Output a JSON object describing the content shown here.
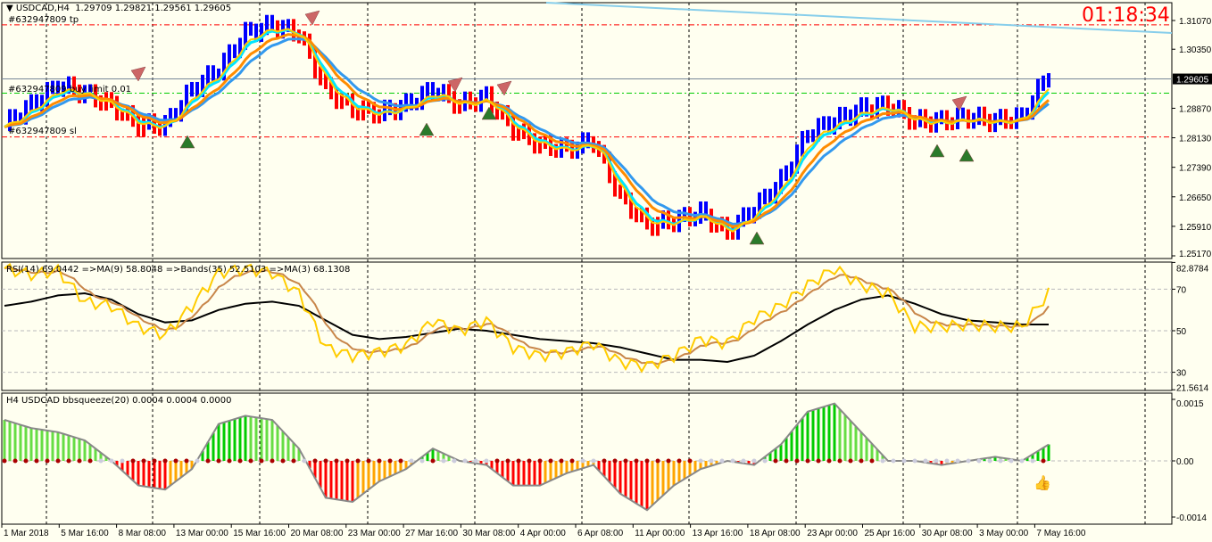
{
  "header": {
    "symbol": "USDCAD,H4",
    "ohlc": "1.29709 1.29821 1.29561 1.29605"
  },
  "clock": "01:18:34",
  "orders": {
    "tp": "#632947809 tp",
    "buy_limit": "#632947809 buy limit 0.01",
    "sl": "#632947809 sl"
  },
  "price_axis": {
    "ticks": [
      "1.31070",
      "1.30350",
      "1.28870",
      "1.28130",
      "1.27390",
      "1.26650",
      "1.25910",
      "1.25170"
    ],
    "current": "1.29605"
  },
  "rsi": {
    "label": "RSI(14) 69.0442  =>MA(9) 58.8048  =>Bands(35) 52.5103  =>MA(3) 68.1308",
    "ticks": [
      "82.8784",
      "70",
      "50",
      "30",
      "21.5614"
    ]
  },
  "squeeze": {
    "label": "H4 USDCAD bbsqueeze(20) 0.0004 0.0004 0.0000",
    "ticks": [
      "0.0015",
      "0.00",
      "-0.0014"
    ]
  },
  "time_axis": [
    "1 Mar 2018",
    "5 Mar 16:00",
    "8 Mar 08:00",
    "13 Mar 00:00",
    "15 Mar 16:00",
    "20 Mar 08:00",
    "23 Mar 00:00",
    "27 Mar 16:00",
    "30 Mar 08:00",
    "4 Apr 00:00",
    "6 Apr 08:00",
    "11 Apr 00:00",
    "13 Apr 16:00",
    "18 Apr 08:00",
    "23 Apr 00:00",
    "25 Apr 16:00",
    "30 Apr 08:00",
    "3 May 00:00",
    "7 May 16:00"
  ],
  "colors": {
    "bull": "#0000ff",
    "bear": "#ff0000",
    "ma_fast": "#00e5ff",
    "ma_slow": "#3399ee",
    "ma_orange": "#ff8c00",
    "ma_yellow": "#ffcc00",
    "tp_sl": "#ff0000",
    "limit": "#00cc00",
    "clock": "#ff0000"
  },
  "chart_data": {
    "type": "line",
    "price_close": [
      1.284,
      1.289,
      1.294,
      1.292,
      1.289,
      1.284,
      1.284,
      1.293,
      1.298,
      1.307,
      1.309,
      1.307,
      1.293,
      1.288,
      1.287,
      1.289,
      1.293,
      1.289,
      1.291,
      1.283,
      1.279,
      1.278,
      1.28,
      1.266,
      1.259,
      1.26,
      1.262,
      1.257,
      1.263,
      1.27,
      1.282,
      1.285,
      1.288,
      1.289,
      1.285,
      1.285,
      1.286,
      1.285,
      1.286,
      1.297
    ],
    "price_levels": {
      "tp": 1.3096,
      "buy_limit": 1.2925,
      "sl": 1.2815,
      "current": 1.29605
    },
    "rsi": [
      80,
      77,
      79,
      64,
      62,
      52,
      48,
      62,
      78,
      80,
      78,
      68,
      42,
      38,
      40,
      43,
      55,
      50,
      55,
      42,
      38,
      40,
      44,
      35,
      33,
      38,
      46,
      44,
      56,
      62,
      72,
      80,
      72,
      68,
      52,
      52,
      53,
      52,
      52,
      68
    ],
    "rsi_bands": [
      62,
      64,
      67,
      68,
      65,
      58,
      54,
      55,
      60,
      63,
      64,
      62,
      55,
      48,
      46,
      47,
      49,
      51,
      50,
      48,
      46,
      45,
      44,
      42,
      39,
      36,
      36,
      35,
      38,
      45,
      53,
      60,
      65,
      67,
      63,
      58,
      55,
      54,
      53,
      53
    ],
    "squeeze": [
      0.001,
      0.0008,
      0.0007,
      0.0005,
      0,
      -0.0006,
      -0.0007,
      -0.0002,
      0.0009,
      0.0011,
      0.001,
      0.0003,
      -0.0009,
      -0.001,
      -0.0005,
      -0.0002,
      0.0003,
      0,
      -0.0001,
      -0.0006,
      -0.0006,
      -0.0003,
      -0.0001,
      -0.0008,
      -0.0012,
      -0.0006,
      -0.0002,
      0,
      -0.0001,
      0.0004,
      0.0012,
      0.0014,
      0.0007,
      0,
      0,
      -0.0001,
      0,
      0.0001,
      0,
      0.0004
    ],
    "price_range": [
      1.2517,
      1.3107
    ],
    "rsi_range": [
      21.5614,
      82.8784
    ],
    "squeeze_range": [
      -0.0014,
      0.0015
    ]
  }
}
